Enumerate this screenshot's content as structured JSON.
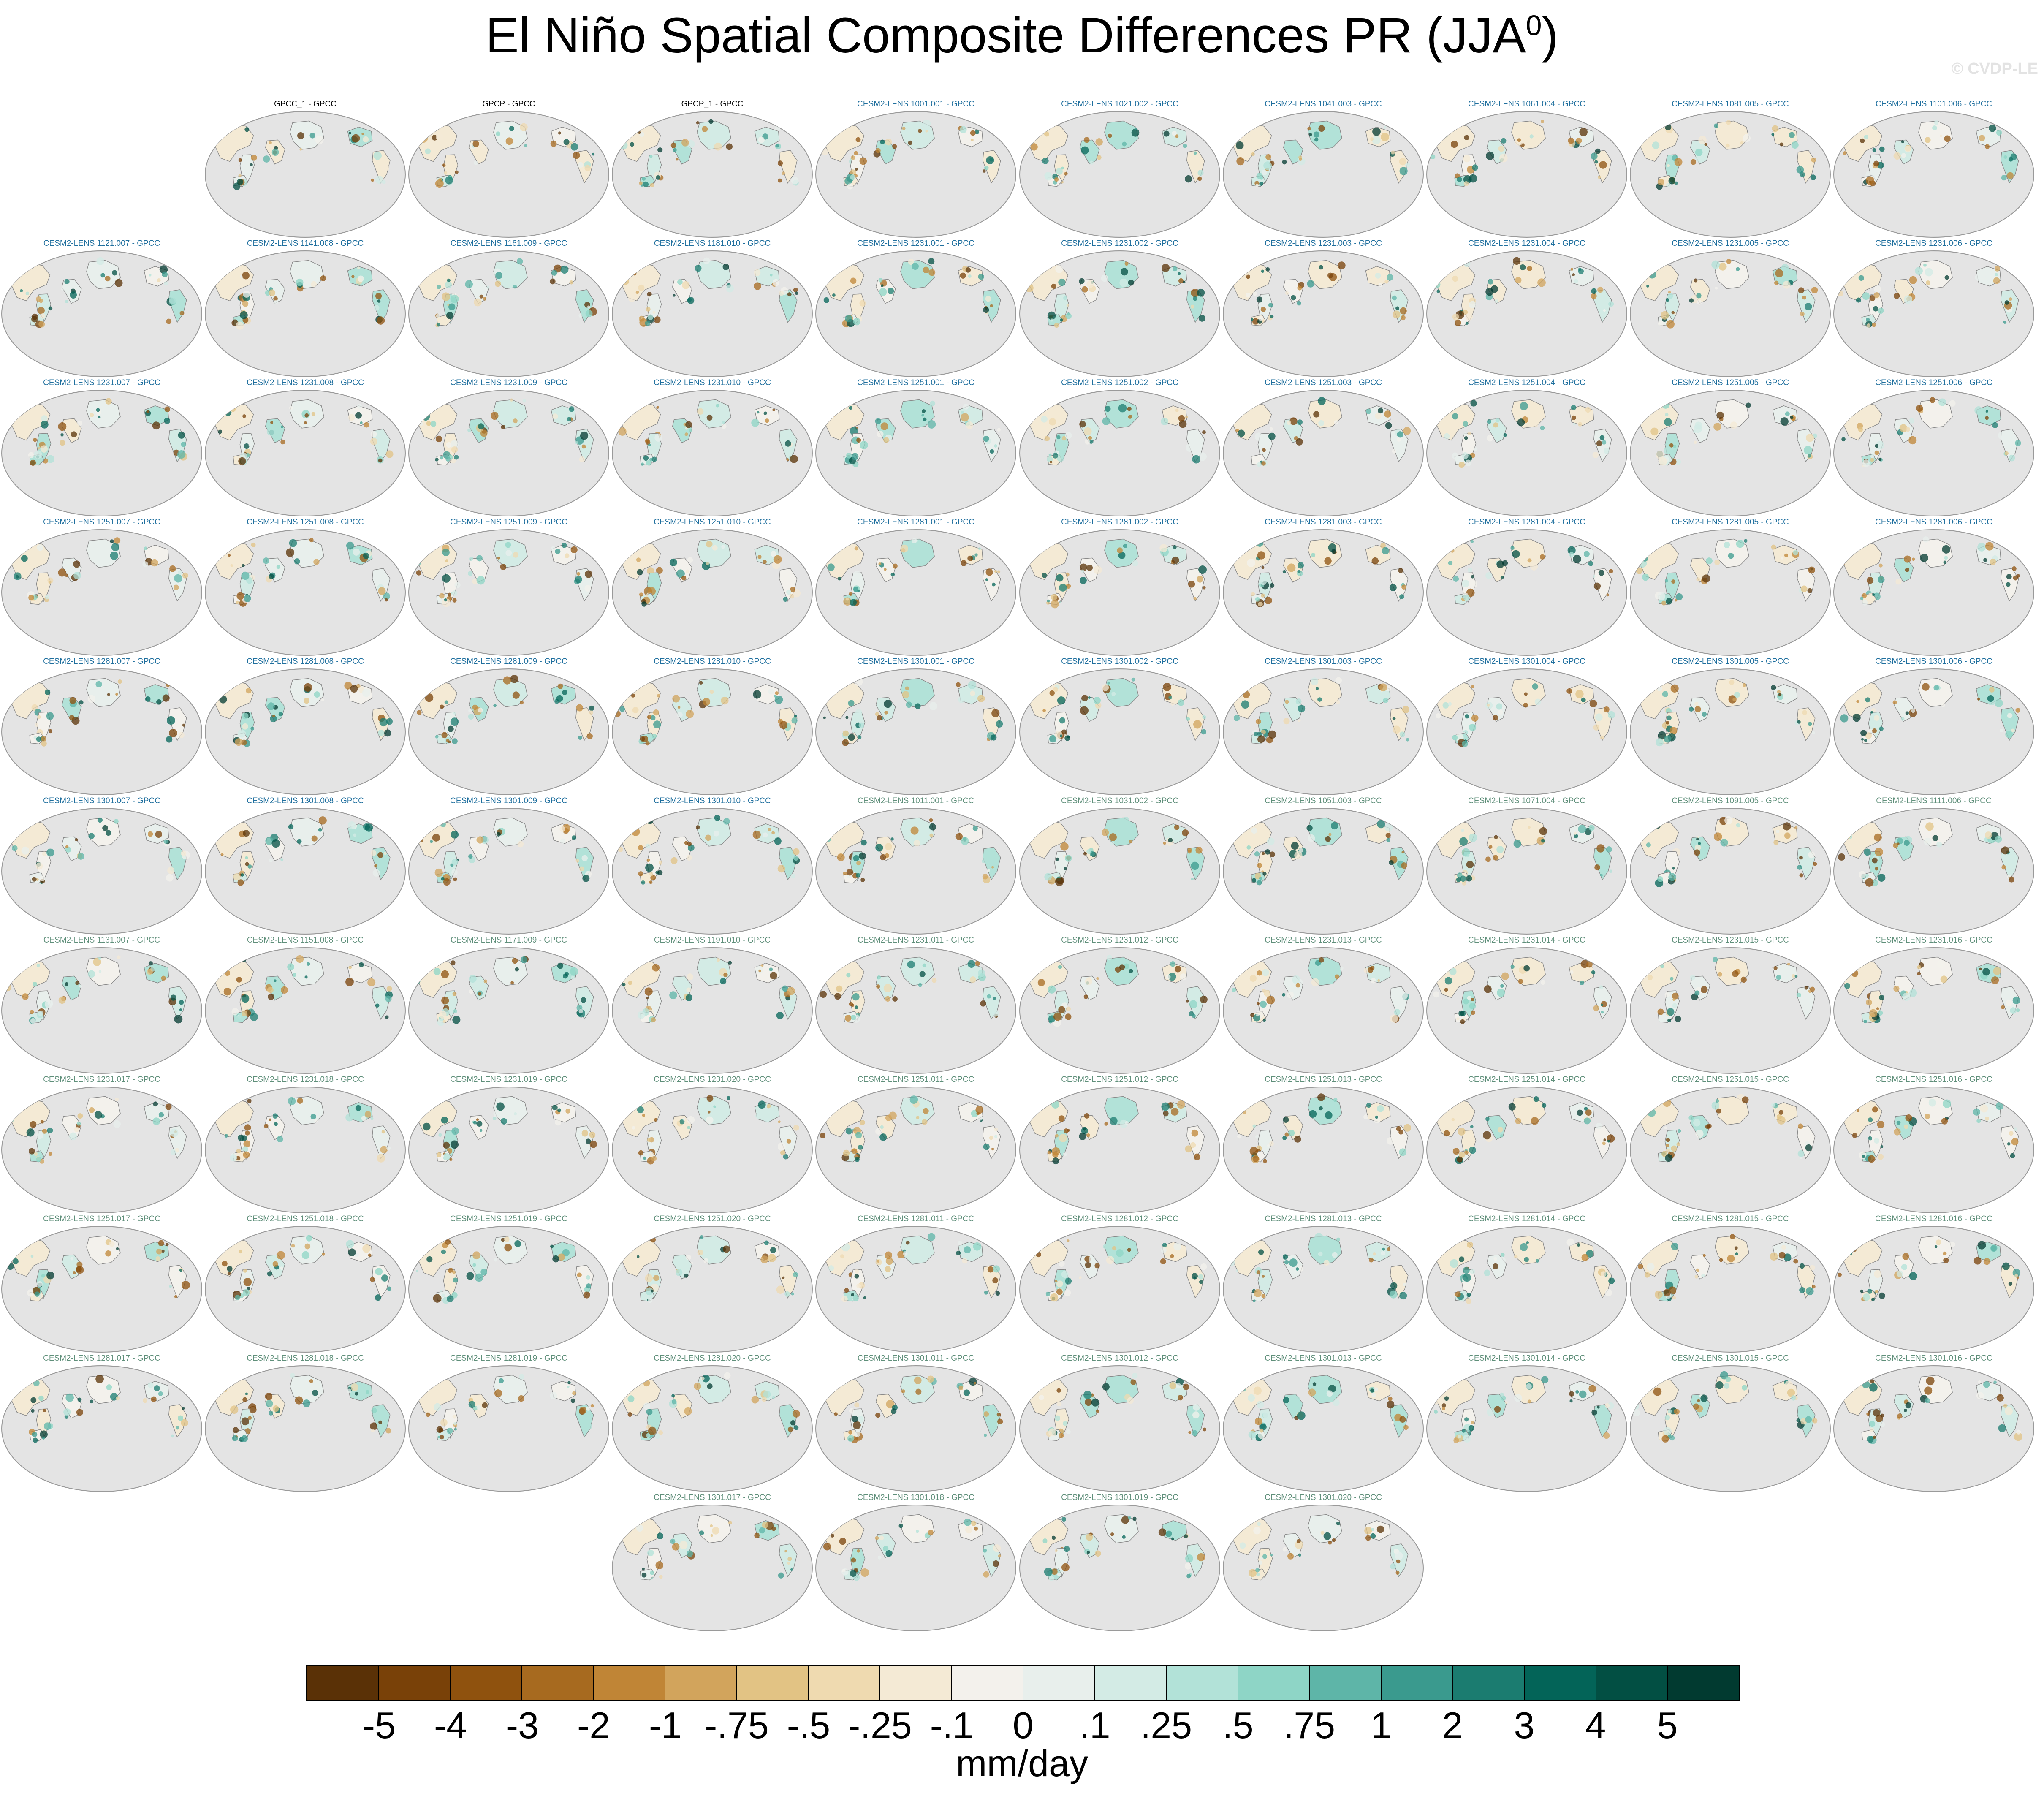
{
  "title": {
    "text": "El Niño Spatial Composite Differences PR (JJA",
    "superscript": "0",
    "close": ")"
  },
  "watermark": "© CVDP-LE",
  "colors": {
    "label_observation": "#000000",
    "label_primary": "#1f6f9e",
    "label_secondary": "#5f8f7a",
    "ocean": "#e4e4e4",
    "coast": "#8a8a8a",
    "globe_outline": "#9a9a9a"
  },
  "rows": [
    [
      {
        "label": "GPCC_1 - GPCC",
        "style": "observation"
      },
      {
        "label": "GPCP - GPCC",
        "style": "observation"
      },
      {
        "label": "GPCP_1 - GPCC",
        "style": "observation"
      },
      {
        "label": "CESM2-LENS 1001.001 - GPCC",
        "style": "primary"
      },
      {
        "label": "CESM2-LENS 1021.002 - GPCC",
        "style": "primary"
      },
      {
        "label": "CESM2-LENS 1041.003 - GPCC",
        "style": "primary"
      },
      {
        "label": "CESM2-LENS 1061.004 - GPCC",
        "style": "primary"
      },
      {
        "label": "CESM2-LENS 1081.005 - GPCC",
        "style": "primary"
      },
      {
        "label": "CESM2-LENS 1101.006 - GPCC",
        "style": "primary"
      }
    ],
    [
      {
        "label": "CESM2-LENS 1121.007 - GPCC",
        "style": "primary"
      },
      {
        "label": "CESM2-LENS 1141.008 - GPCC",
        "style": "primary"
      },
      {
        "label": "CESM2-LENS 1161.009 - GPCC",
        "style": "primary"
      },
      {
        "label": "CESM2-LENS 1181.010 - GPCC",
        "style": "primary"
      },
      {
        "label": "CESM2-LENS 1231.001 - GPCC",
        "style": "primary"
      },
      {
        "label": "CESM2-LENS 1231.002 - GPCC",
        "style": "primary"
      },
      {
        "label": "CESM2-LENS 1231.003 - GPCC",
        "style": "primary"
      },
      {
        "label": "CESM2-LENS 1231.004 - GPCC",
        "style": "primary"
      },
      {
        "label": "CESM2-LENS 1231.005 - GPCC",
        "style": "primary"
      },
      {
        "label": "CESM2-LENS 1231.006 - GPCC",
        "style": "primary"
      }
    ],
    [
      {
        "label": "CESM2-LENS 1231.007 - GPCC",
        "style": "primary"
      },
      {
        "label": "CESM2-LENS 1231.008 - GPCC",
        "style": "primary"
      },
      {
        "label": "CESM2-LENS 1231.009 - GPCC",
        "style": "primary"
      },
      {
        "label": "CESM2-LENS 1231.010 - GPCC",
        "style": "primary"
      },
      {
        "label": "CESM2-LENS 1251.001 - GPCC",
        "style": "primary"
      },
      {
        "label": "CESM2-LENS 1251.002 - GPCC",
        "style": "primary"
      },
      {
        "label": "CESM2-LENS 1251.003 - GPCC",
        "style": "primary"
      },
      {
        "label": "CESM2-LENS 1251.004 - GPCC",
        "style": "primary"
      },
      {
        "label": "CESM2-LENS 1251.005 - GPCC",
        "style": "primary"
      },
      {
        "label": "CESM2-LENS 1251.006 - GPCC",
        "style": "primary"
      }
    ],
    [
      {
        "label": "CESM2-LENS 1251.007 - GPCC",
        "style": "primary"
      },
      {
        "label": "CESM2-LENS 1251.008 - GPCC",
        "style": "primary"
      },
      {
        "label": "CESM2-LENS 1251.009 - GPCC",
        "style": "primary"
      },
      {
        "label": "CESM2-LENS 1251.010 - GPCC",
        "style": "primary"
      },
      {
        "label": "CESM2-LENS 1281.001 - GPCC",
        "style": "primary"
      },
      {
        "label": "CESM2-LENS 1281.002 - GPCC",
        "style": "primary"
      },
      {
        "label": "CESM2-LENS 1281.003 - GPCC",
        "style": "primary"
      },
      {
        "label": "CESM2-LENS 1281.004 - GPCC",
        "style": "primary"
      },
      {
        "label": "CESM2-LENS 1281.005 - GPCC",
        "style": "primary"
      },
      {
        "label": "CESM2-LENS 1281.006 - GPCC",
        "style": "primary"
      }
    ],
    [
      {
        "label": "CESM2-LENS 1281.007 - GPCC",
        "style": "primary"
      },
      {
        "label": "CESM2-LENS 1281.008 - GPCC",
        "style": "primary"
      },
      {
        "label": "CESM2-LENS 1281.009 - GPCC",
        "style": "primary"
      },
      {
        "label": "CESM2-LENS 1281.010 - GPCC",
        "style": "primary"
      },
      {
        "label": "CESM2-LENS 1301.001 - GPCC",
        "style": "primary"
      },
      {
        "label": "CESM2-LENS 1301.002 - GPCC",
        "style": "primary"
      },
      {
        "label": "CESM2-LENS 1301.003 - GPCC",
        "style": "primary"
      },
      {
        "label": "CESM2-LENS 1301.004 - GPCC",
        "style": "primary"
      },
      {
        "label": "CESM2-LENS 1301.005 - GPCC",
        "style": "primary"
      },
      {
        "label": "CESM2-LENS 1301.006 - GPCC",
        "style": "primary"
      }
    ],
    [
      {
        "label": "CESM2-LENS 1301.007 - GPCC",
        "style": "primary"
      },
      {
        "label": "CESM2-LENS 1301.008 - GPCC",
        "style": "primary"
      },
      {
        "label": "CESM2-LENS 1301.009 - GPCC",
        "style": "primary"
      },
      {
        "label": "CESM2-LENS 1301.010 - GPCC",
        "style": "primary"
      },
      {
        "label": "CESM2-LENS 1011.001 - GPCC",
        "style": "secondary"
      },
      {
        "label": "CESM2-LENS 1031.002 - GPCC",
        "style": "secondary"
      },
      {
        "label": "CESM2-LENS 1051.003 - GPCC",
        "style": "secondary"
      },
      {
        "label": "CESM2-LENS 1071.004 - GPCC",
        "style": "secondary"
      },
      {
        "label": "CESM2-LENS 1091.005 - GPCC",
        "style": "secondary"
      },
      {
        "label": "CESM2-LENS 1111.006 - GPCC",
        "style": "secondary"
      }
    ],
    [
      {
        "label": "CESM2-LENS 1131.007 - GPCC",
        "style": "secondary"
      },
      {
        "label": "CESM2-LENS 1151.008 - GPCC",
        "style": "secondary"
      },
      {
        "label": "CESM2-LENS 1171.009 - GPCC",
        "style": "secondary"
      },
      {
        "label": "CESM2-LENS 1191.010 - GPCC",
        "style": "secondary"
      },
      {
        "label": "CESM2-LENS 1231.011 - GPCC",
        "style": "secondary"
      },
      {
        "label": "CESM2-LENS 1231.012 - GPCC",
        "style": "secondary"
      },
      {
        "label": "CESM2-LENS 1231.013 - GPCC",
        "style": "secondary"
      },
      {
        "label": "CESM2-LENS 1231.014 - GPCC",
        "style": "secondary"
      },
      {
        "label": "CESM2-LENS 1231.015 - GPCC",
        "style": "secondary"
      },
      {
        "label": "CESM2-LENS 1231.016 - GPCC",
        "style": "secondary"
      }
    ],
    [
      {
        "label": "CESM2-LENS 1231.017 - GPCC",
        "style": "secondary"
      },
      {
        "label": "CESM2-LENS 1231.018 - GPCC",
        "style": "secondary"
      },
      {
        "label": "CESM2-LENS 1231.019 - GPCC",
        "style": "secondary"
      },
      {
        "label": "CESM2-LENS 1231.020 - GPCC",
        "style": "secondary"
      },
      {
        "label": "CESM2-LENS 1251.011 - GPCC",
        "style": "secondary"
      },
      {
        "label": "CESM2-LENS 1251.012 - GPCC",
        "style": "secondary"
      },
      {
        "label": "CESM2-LENS 1251.013 - GPCC",
        "style": "secondary"
      },
      {
        "label": "CESM2-LENS 1251.014 - GPCC",
        "style": "secondary"
      },
      {
        "label": "CESM2-LENS 1251.015 - GPCC",
        "style": "secondary"
      },
      {
        "label": "CESM2-LENS 1251.016 - GPCC",
        "style": "secondary"
      }
    ],
    [
      {
        "label": "CESM2-LENS 1251.017 - GPCC",
        "style": "secondary"
      },
      {
        "label": "CESM2-LENS 1251.018 - GPCC",
        "style": "secondary"
      },
      {
        "label": "CESM2-LENS 1251.019 - GPCC",
        "style": "secondary"
      },
      {
        "label": "CESM2-LENS 1251.020 - GPCC",
        "style": "secondary"
      },
      {
        "label": "CESM2-LENS 1281.011 - GPCC",
        "style": "secondary"
      },
      {
        "label": "CESM2-LENS 1281.012 - GPCC",
        "style": "secondary"
      },
      {
        "label": "CESM2-LENS 1281.013 - GPCC",
        "style": "secondary"
      },
      {
        "label": "CESM2-LENS 1281.014 - GPCC",
        "style": "secondary"
      },
      {
        "label": "CESM2-LENS 1281.015 - GPCC",
        "style": "secondary"
      },
      {
        "label": "CESM2-LENS 1281.016 - GPCC",
        "style": "secondary"
      }
    ],
    [
      {
        "label": "CESM2-LENS 1281.017 - GPCC",
        "style": "secondary"
      },
      {
        "label": "CESM2-LENS 1281.018 - GPCC",
        "style": "secondary"
      },
      {
        "label": "CESM2-LENS 1281.019 - GPCC",
        "style": "secondary"
      },
      {
        "label": "CESM2-LENS 1281.020 - GPCC",
        "style": "secondary"
      },
      {
        "label": "CESM2-LENS 1301.011 - GPCC",
        "style": "secondary"
      },
      {
        "label": "CESM2-LENS 1301.012 - GPCC",
        "style": "secondary"
      },
      {
        "label": "CESM2-LENS 1301.013 - GPCC",
        "style": "secondary"
      },
      {
        "label": "CESM2-LENS 1301.014 - GPCC",
        "style": "secondary"
      },
      {
        "label": "CESM2-LENS 1301.015 - GPCC",
        "style": "secondary"
      },
      {
        "label": "CESM2-LENS 1301.016 - GPCC",
        "style": "secondary"
      }
    ],
    [
      {
        "label": "CESM2-LENS 1301.017 - GPCC",
        "style": "secondary"
      },
      {
        "label": "CESM2-LENS 1301.018 - GPCC",
        "style": "secondary"
      },
      {
        "label": "CESM2-LENS 1301.019 - GPCC",
        "style": "secondary"
      },
      {
        "label": "CESM2-LENS 1301.020 - GPCC",
        "style": "secondary"
      }
    ]
  ],
  "colorbar": {
    "units": "mm/day",
    "boundaries": [
      "-5",
      "-4",
      "-3",
      "-2",
      "-1",
      "-.75",
      "-.5",
      "-.25",
      "-.1",
      "0",
      ".1",
      ".25",
      ".5",
      ".75",
      "1",
      "2",
      "3",
      "4",
      "5"
    ],
    "colors": [
      "#5a3106",
      "#794108",
      "#8f520e",
      "#a76a1f",
      "#c08536",
      "#d2a45c",
      "#e2c384",
      "#efdab0",
      "#f4ead5",
      "#f3f1ec",
      "#e8efec",
      "#d3ebe5",
      "#b2e2d8",
      "#8ed5c6",
      "#5eb5a8",
      "#3a9a8e",
      "#1b7c70",
      "#036458",
      "#024f43",
      "#013a30"
    ]
  }
}
